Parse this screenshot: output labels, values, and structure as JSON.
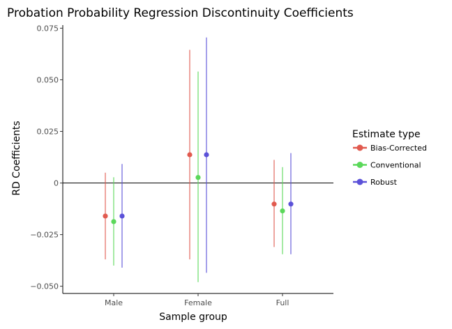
{
  "chart_data": {
    "type": "errorbar",
    "title": "Probation Probability Regression Discontinuity Coefficients",
    "xlabel": "Sample group",
    "ylabel": "RD Coefficients",
    "categories": [
      "Male",
      "Female",
      "Full"
    ],
    "ylim": [
      -0.0535,
      0.0765
    ],
    "yticks": [
      -0.05,
      -0.025,
      0,
      0.025,
      0.05,
      0.075
    ],
    "ytick_labels": [
      "−0.050",
      "−0.025",
      "0",
      "0.025",
      "0.050",
      "0.075"
    ],
    "zero_line": true,
    "grid": false,
    "legend": {
      "title": "Estimate type",
      "placement": "right"
    },
    "series": [
      {
        "name": "Bias-Corrected",
        "color": "#E15A4F",
        "estimates": [
          -0.016,
          0.0137,
          -0.0102
        ],
        "lower": [
          -0.037,
          -0.037,
          -0.031
        ],
        "upper": [
          0.005,
          0.0645,
          0.0112
        ]
      },
      {
        "name": "Conventional",
        "color": "#5BD85A",
        "estimates": [
          -0.0187,
          0.0027,
          -0.0135
        ],
        "lower": [
          -0.04,
          -0.048,
          -0.0345
        ],
        "upper": [
          0.0028,
          0.054,
          0.0077
        ]
      },
      {
        "name": "Robust",
        "color": "#5B51D8",
        "estimates": [
          -0.016,
          0.0137,
          -0.0102
        ],
        "lower": [
          -0.041,
          -0.0435,
          -0.0345
        ],
        "upper": [
          0.0092,
          0.0705,
          0.0145
        ]
      }
    ]
  }
}
